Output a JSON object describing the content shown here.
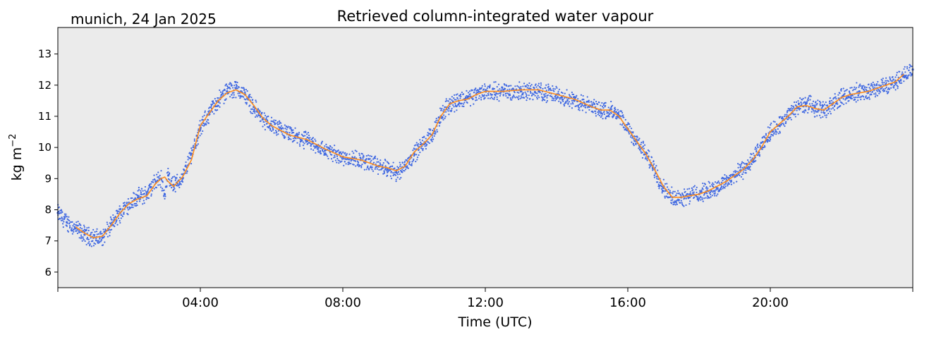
{
  "header": {
    "location_date": "munich, 24 Jan 2025"
  },
  "chart_data": {
    "type": "line",
    "title": "Retrieved column-integrated water vapour",
    "xlabel": "Time (UTC)",
    "ylabel_base": "kg m",
    "ylabel_exp": "−2",
    "xlim": [
      0,
      24
    ],
    "ylim": [
      5.5,
      13.85
    ],
    "x_tick_values": [
      4,
      8,
      12,
      16,
      20
    ],
    "x_tick_labels": [
      "04:00",
      "08:00",
      "12:00",
      "16:00",
      "20:00"
    ],
    "x_minor_ticks": [
      0,
      24
    ],
    "y_tick_values": [
      6,
      7,
      8,
      9,
      10,
      11,
      12,
      13
    ],
    "y_tick_labels": [
      "6",
      "7",
      "8",
      "9",
      "10",
      "11",
      "12",
      "13"
    ],
    "grid": false,
    "background_color": "#ebebeb",
    "series": [
      {
        "style": "scatter",
        "color": "#4169e1",
        "x": [
          0.0,
          0.25,
          0.5,
          0.75,
          1.0,
          1.25,
          1.5,
          1.75,
          2.0,
          2.25,
          2.5,
          2.75,
          2.9,
          3.0,
          3.1,
          3.25,
          3.5,
          3.75,
          4.0,
          4.25,
          4.5,
          4.75,
          5.0,
          5.25,
          5.5,
          5.75,
          6.0,
          6.5,
          7.0,
          7.5,
          8.0,
          8.5,
          9.0,
          9.25,
          9.5,
          9.75,
          10.0,
          10.25,
          10.5,
          10.75,
          11.0,
          11.25,
          11.5,
          11.75,
          12.0,
          12.5,
          13.0,
          13.5,
          14.0,
          14.5,
          15.0,
          15.25,
          15.5,
          15.75,
          16.0,
          16.25,
          16.5,
          16.75,
          17.0,
          17.25,
          17.5,
          17.75,
          18.0,
          18.25,
          18.5,
          18.75,
          19.0,
          19.25,
          19.5,
          19.75,
          20.0,
          20.25,
          20.5,
          20.75,
          21.0,
          21.25,
          21.5,
          21.75,
          22.0,
          22.25,
          22.5,
          22.75,
          23.0,
          23.25,
          23.5,
          23.75,
          24.0
        ],
        "y": [
          7.9,
          7.6,
          7.4,
          7.2,
          7.1,
          7.1,
          7.5,
          7.9,
          8.2,
          8.4,
          8.5,
          8.9,
          9.0,
          8.5,
          9.1,
          8.8,
          9.0,
          9.8,
          10.6,
          11.1,
          11.5,
          11.8,
          11.9,
          11.7,
          11.3,
          10.9,
          10.7,
          10.4,
          10.2,
          9.9,
          9.7,
          9.6,
          9.4,
          9.3,
          9.2,
          9.4,
          9.8,
          10.1,
          10.4,
          11.0,
          11.4,
          11.5,
          11.6,
          11.7,
          11.8,
          11.8,
          11.8,
          11.8,
          11.7,
          11.5,
          11.3,
          11.2,
          11.2,
          11.0,
          10.6,
          10.2,
          9.8,
          9.3,
          8.7,
          8.4,
          8.4,
          8.5,
          8.5,
          8.6,
          8.7,
          8.9,
          9.1,
          9.3,
          9.6,
          10.0,
          10.5,
          10.7,
          11.0,
          11.3,
          11.4,
          11.3,
          11.2,
          11.4,
          11.6,
          11.7,
          11.8,
          11.8,
          11.9,
          12.0,
          12.1,
          12.3,
          12.5
        ]
      },
      {
        "style": "line",
        "color": "#ff8c1a",
        "x": [
          0.5,
          0.75,
          1.0,
          1.25,
          1.5,
          1.75,
          2.0,
          2.25,
          2.5,
          2.75,
          2.9,
          3.0,
          3.1,
          3.25,
          3.5,
          3.75,
          4.0,
          4.25,
          4.5,
          4.75,
          5.0,
          5.25,
          5.5,
          5.75,
          6.0,
          6.5,
          7.0,
          7.5,
          8.0,
          8.5,
          9.0,
          9.25,
          9.5,
          9.75,
          10.0,
          10.25,
          10.5,
          10.75,
          11.0,
          11.25,
          11.5,
          11.75,
          12.0,
          12.5,
          13.0,
          13.5,
          14.0,
          14.5,
          15.0,
          15.25,
          15.5,
          15.75,
          16.0,
          16.25,
          16.5,
          16.75,
          17.0,
          17.25,
          17.5,
          17.75,
          18.0,
          18.25,
          18.5,
          18.75,
          19.0,
          19.25,
          19.5,
          19.75,
          20.0,
          20.25,
          20.5,
          20.75,
          21.0,
          21.25,
          21.5,
          21.75,
          22.0,
          22.25,
          22.5,
          22.75,
          23.0,
          23.25,
          23.5,
          23.75
        ],
        "y": [
          7.45,
          7.25,
          7.1,
          7.15,
          7.5,
          7.9,
          8.2,
          8.35,
          8.45,
          8.85,
          9.0,
          9.05,
          8.9,
          8.75,
          9.05,
          9.6,
          10.7,
          11.1,
          11.5,
          11.75,
          11.85,
          11.7,
          11.35,
          10.95,
          10.7,
          10.4,
          10.25,
          9.95,
          9.7,
          9.6,
          9.4,
          9.35,
          9.25,
          9.4,
          9.85,
          10.1,
          10.4,
          11.0,
          11.4,
          11.5,
          11.55,
          11.7,
          11.8,
          11.8,
          11.85,
          11.85,
          11.7,
          11.55,
          11.3,
          11.2,
          11.2,
          11.0,
          10.6,
          10.2,
          9.8,
          9.3,
          8.75,
          8.4,
          8.4,
          8.45,
          8.5,
          8.6,
          8.75,
          8.9,
          9.1,
          9.3,
          9.6,
          10.0,
          10.5,
          10.75,
          11.0,
          11.3,
          11.35,
          11.25,
          11.2,
          11.4,
          11.6,
          11.7,
          11.75,
          11.8,
          11.9,
          12.0,
          12.1,
          12.35
        ]
      }
    ]
  }
}
